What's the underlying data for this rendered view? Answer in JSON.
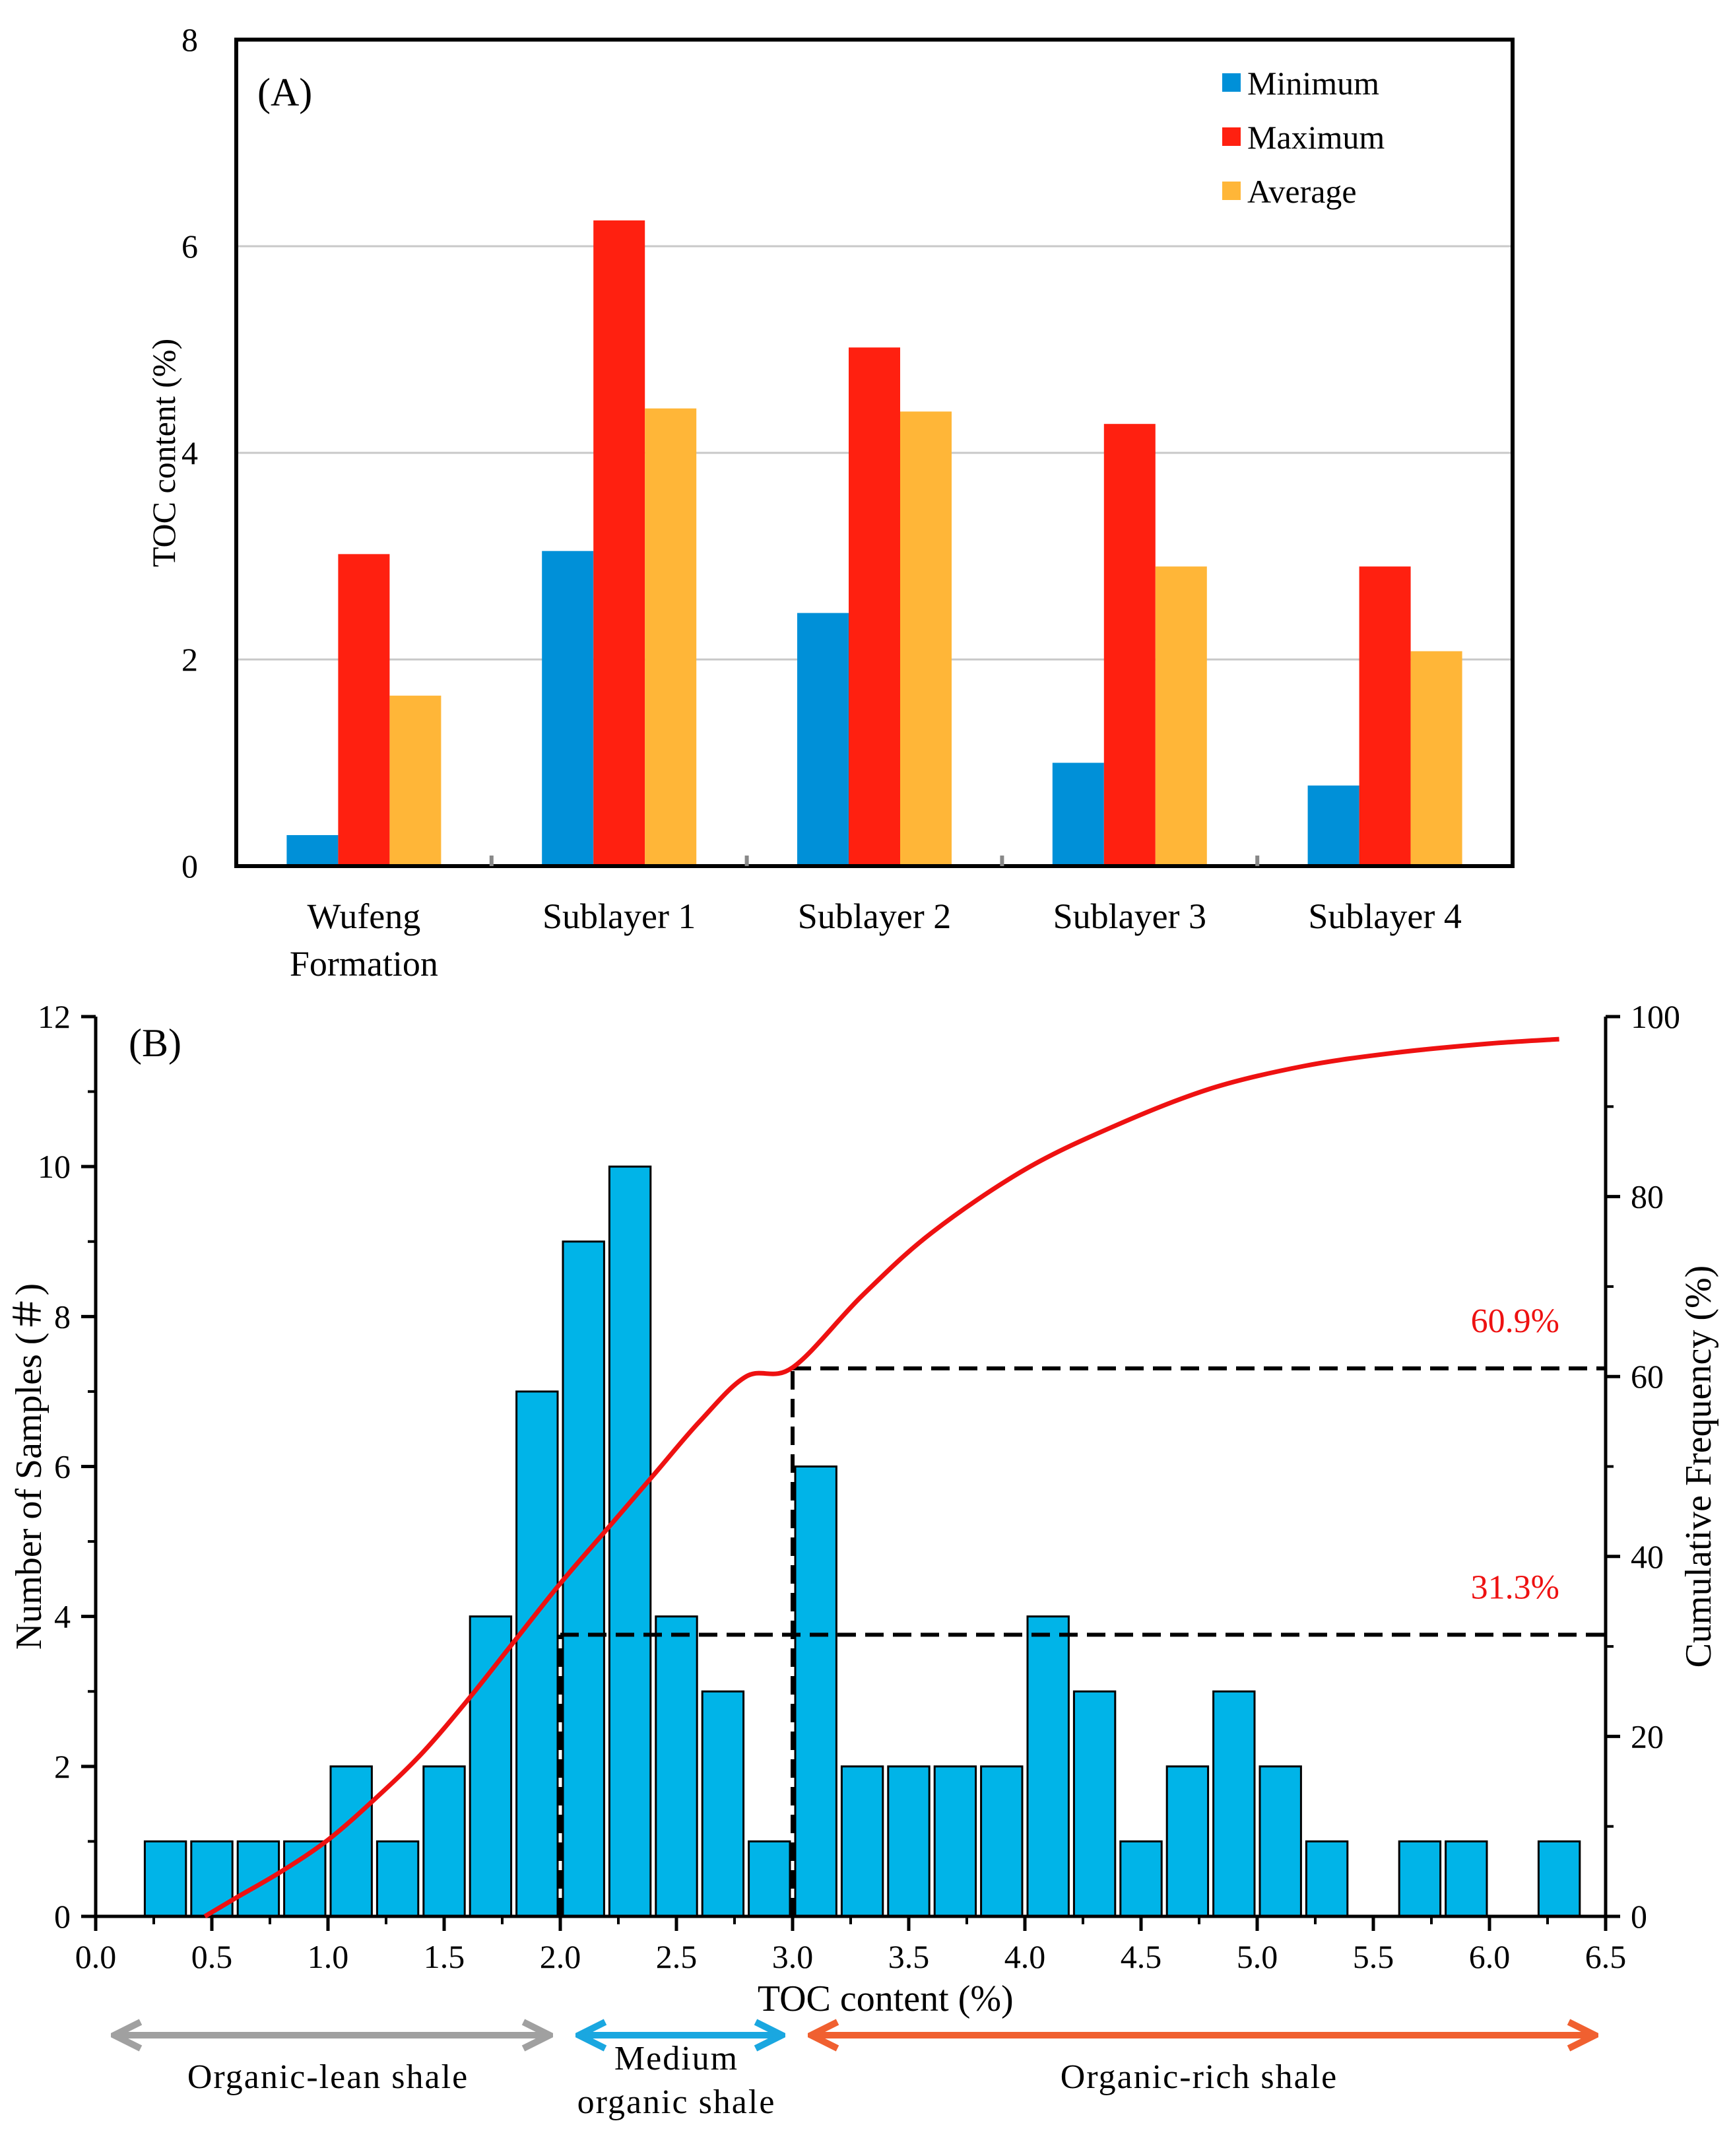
{
  "chart_data": [
    {
      "panel_label": "(A)",
      "type": "bar",
      "categories": [
        [
          "Wufeng",
          "Formation"
        ],
        [
          "Sublayer 1"
        ],
        [
          "Sublayer 2"
        ],
        [
          "Sublayer 3"
        ],
        [
          "Sublayer 4"
        ]
      ],
      "series": [
        {
          "name": "Minimum",
          "color": "#0090d8",
          "values": [
            0.3,
            3.05,
            2.45,
            1.0,
            0.78
          ]
        },
        {
          "name": "Maximum",
          "color": "#ff2010",
          "values": [
            3.02,
            6.25,
            5.02,
            4.28,
            2.9
          ]
        },
        {
          "name": "Average",
          "color": "#ffb638",
          "values": [
            1.65,
            4.43,
            4.4,
            2.9,
            2.08
          ]
        }
      ],
      "ylabel": "TOC  content (%)",
      "ylim": [
        0,
        8
      ],
      "yticks": [
        0,
        2,
        4,
        6,
        8
      ],
      "grid": true,
      "legend": "top-right"
    },
    {
      "panel_label": "(B)",
      "type": "bar",
      "bar_color": "#00b4e8",
      "xlabel": "TOC content (%)",
      "ylabel": "Number of Samples (＃)",
      "y2label": "Cumulative Frequency (%)",
      "xlim": [
        0,
        6.5
      ],
      "ylim": [
        0,
        12
      ],
      "y2lim": [
        0,
        100
      ],
      "xticks": [
        "0.0",
        "0.5",
        "1.0",
        "1.5",
        "2.0",
        "2.5",
        "3.0",
        "3.5",
        "4.0",
        "4.5",
        "5.0",
        "5.5",
        "6.0",
        "6.5"
      ],
      "yticks": [
        "0",
        "2",
        "4",
        "6",
        "8",
        "10",
        "12"
      ],
      "y2ticks": [
        "0",
        "20",
        "40",
        "60",
        "80",
        "100"
      ],
      "bin_width": 0.2,
      "bins_start": [
        0.2,
        0.4,
        0.6,
        0.8,
        1.0,
        1.2,
        1.4,
        1.6,
        1.8,
        2.0,
        2.2,
        2.4,
        2.6,
        2.8,
        3.0,
        3.2,
        3.4,
        3.6,
        3.8,
        4.0,
        4.2,
        4.4,
        4.6,
        4.8,
        5.0,
        5.2,
        5.4,
        5.6,
        5.8,
        6.0,
        6.2
      ],
      "counts": [
        1,
        1,
        1,
        1,
        2,
        1,
        2,
        4,
        7,
        9,
        10,
        4,
        3,
        1,
        6,
        2,
        2,
        2,
        2,
        4,
        3,
        1,
        2,
        3,
        2,
        1,
        0,
        1,
        1,
        0,
        1
      ],
      "cumulative_curve": {
        "name": "Cumulative Frequency",
        "color": "#ee1111",
        "x": [
          0.47,
          0.6,
          0.8,
          1.0,
          1.2,
          1.4,
          1.6,
          1.8,
          2.0,
          2.2,
          2.4,
          2.6,
          2.8,
          3.0,
          3.3,
          3.6,
          4.0,
          4.4,
          4.8,
          5.2,
          5.6,
          6.0,
          6.3
        ],
        "y": [
          0,
          2,
          5,
          8.5,
          13,
          18,
          24,
          30.5,
          37,
          43,
          49,
          55,
          60,
          61,
          69,
          76,
          83,
          88,
          92,
          94.5,
          96,
          97,
          97.5
        ]
      },
      "reference_lines": [
        {
          "x": 2.0,
          "cumulative": 31.3,
          "label": "31.3%"
        },
        {
          "x": 3.0,
          "cumulative": 60.9,
          "label": "60.9%"
        }
      ],
      "classes": [
        {
          "label": "Organic-lean shale",
          "lines": [
            "Organic-lean shale"
          ],
          "from": 0,
          "to": 2.0,
          "color": "#a0a0a0"
        },
        {
          "label": "Medium organic shale",
          "lines": [
            "Medium",
            "organic shale"
          ],
          "from": 2.0,
          "to": 3.0,
          "color": "#1aa7e0"
        },
        {
          "label": "Organic-rich shale",
          "lines": [
            "Organic-rich shale"
          ],
          "from": 3.0,
          "to": 6.5,
          "color": "#f06030"
        }
      ]
    }
  ]
}
